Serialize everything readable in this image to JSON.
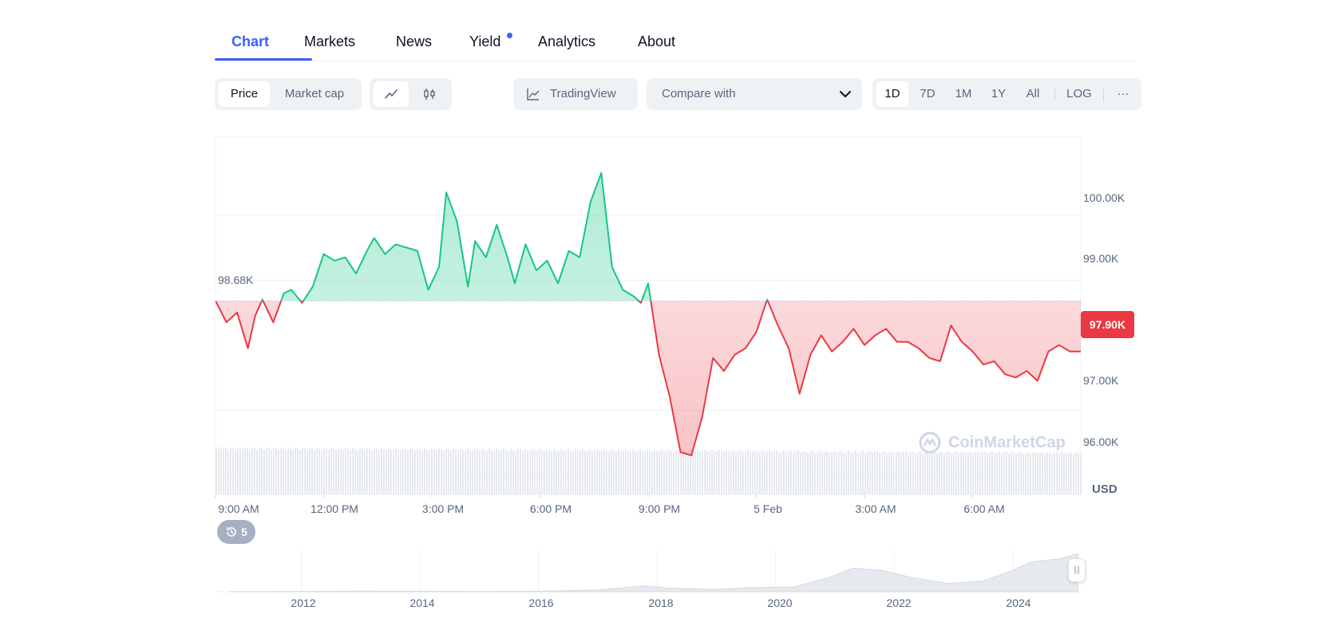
{
  "tabs": [
    {
      "label": "Chart",
      "active": true
    },
    {
      "label": "Markets"
    },
    {
      "label": "News"
    },
    {
      "label": "Yield",
      "dot": true
    },
    {
      "label": "Analytics"
    },
    {
      "label": "About"
    }
  ],
  "toolbar": {
    "price_label": "Price",
    "market_cap_label": "Market cap",
    "line_icon": "line-chart-icon",
    "candle_icon": "candlestick-icon",
    "tradingview_label": "TradingView",
    "compare_label": "Compare with",
    "ranges": [
      "1D",
      "7D",
      "1M",
      "1Y",
      "All"
    ],
    "selected_range": "1D",
    "log_label": "LOG",
    "more_label": "···"
  },
  "colors": {
    "accent": "#3861fb",
    "up": "#16c784",
    "down": "#ea3943"
  },
  "chart": {
    "start_label": "98.68K",
    "current_label": "97.90K",
    "unit_label": "USD",
    "watermark": "CoinMarketCap",
    "history_count": "5",
    "y_ticks": [
      "100.00K",
      "99.00K",
      "97.00K",
      "96.00K"
    ],
    "x_ticks": [
      "9:00 AM",
      "12:00 PM",
      "3:00 PM",
      "6:00 PM",
      "9:00 PM",
      "5 Feb",
      "3:00 AM",
      "6:00 AM"
    ],
    "navigator_years": [
      "2012",
      "2014",
      "2016",
      "2018",
      "2020",
      "2022",
      "2024"
    ]
  },
  "chart_data": {
    "type": "line",
    "baseline": 98680,
    "current": 97900,
    "ylim": [
      95700,
      101200
    ],
    "y_tick_values": [
      100000,
      99000,
      97000,
      96000
    ],
    "x_tick_times": [
      "9:00 AM",
      "12:00 PM",
      "3:00 PM",
      "6:00 PM",
      "9:00 PM",
      "5 Feb",
      "3:00 AM",
      "6:00 AM"
    ],
    "x_tick_hours": [
      0,
      3,
      6,
      9,
      12,
      15,
      18,
      21
    ],
    "xlim_hours": [
      0,
      24
    ],
    "series": [
      {
        "x_hours": [
          0,
          0.3,
          0.6,
          0.9,
          1.1,
          1.3,
          1.6,
          1.9,
          2.1,
          2.4,
          2.7,
          3.0,
          3.3,
          3.6,
          3.9,
          4.2,
          4.4,
          4.7,
          5.0,
          5.3,
          5.6,
          5.9,
          6.2,
          6.4,
          6.7,
          7.0,
          7.2,
          7.5,
          7.8,
          8.1,
          8.3,
          8.6,
          8.9,
          9.2,
          9.5,
          9.8,
          10.1,
          10.4,
          10.7,
          11.0,
          11.3,
          11.6,
          11.8,
          12.0,
          12.3,
          12.6,
          12.9,
          13.2,
          13.5,
          13.8,
          14.1,
          14.4,
          14.7,
          15.0,
          15.3,
          15.6,
          15.9,
          16.2,
          16.5,
          16.8,
          17.1,
          17.4,
          17.7,
          18.0,
          18.3,
          18.6,
          18.9,
          19.2,
          19.5,
          19.8,
          20.1,
          20.4,
          20.7,
          21.0,
          21.3,
          21.6,
          21.9,
          22.2,
          22.5,
          22.8,
          23.1,
          23.4,
          23.7,
          24.0
        ],
        "values": [
          98680,
          98350,
          98500,
          97950,
          98450,
          98700,
          98350,
          98800,
          98850,
          98650,
          98900,
          99400,
          99300,
          99350,
          99100,
          99450,
          99650,
          99400,
          99550,
          99500,
          99450,
          98850,
          99200,
          100350,
          99900,
          98900,
          99600,
          99350,
          99850,
          99350,
          98950,
          99550,
          99150,
          99300,
          98950,
          99450,
          99350,
          100200,
          100650,
          99200,
          98850,
          98750,
          98650,
          98950,
          97850,
          97200,
          96350,
          96300,
          96900,
          97800,
          97600,
          97850,
          97950,
          98200,
          98700,
          98300,
          97950,
          97250,
          97850,
          98150,
          97900,
          98050,
          98250,
          98000,
          98150,
          98250,
          98050,
          98050,
          97950,
          97800,
          97750,
          98300,
          98050,
          97900,
          97700,
          97750,
          97550,
          97500,
          97600,
          97450,
          97900,
          98000,
          97900,
          97900
        ]
      }
    ],
    "volume_note": "",
    "navigator": {
      "type": "area",
      "x_years": [
        2010.8,
        2012,
        2013,
        2014,
        2015,
        2016,
        2017,
        2017.8,
        2018.2,
        2019,
        2019.6,
        2020.3,
        2020.9,
        2021.3,
        2021.8,
        2022.3,
        2022.9,
        2023.5,
        2024.0,
        2024.3,
        2024.8,
        2025.1
      ],
      "values": [
        0.2,
        0.3,
        0.5,
        0.4,
        0.3,
        0.4,
        1.5,
        5.0,
        3.0,
        2.0,
        3.5,
        4.0,
        12.0,
        20.0,
        18.0,
        12.0,
        7.0,
        9.0,
        18.0,
        25.0,
        28.0,
        32.0
      ],
      "ylim": [
        0,
        35
      ]
    }
  }
}
